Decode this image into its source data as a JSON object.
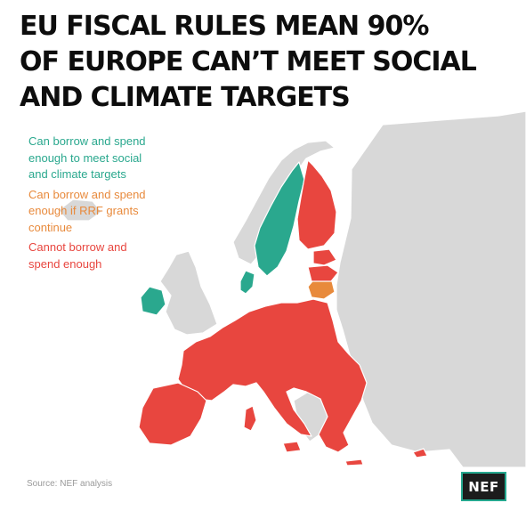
{
  "title_lines": [
    "EU FISCAL RULES MEAN 90%",
    "OF EUROPE CAN’T MEET SOCIAL",
    "AND CLIMATE TARGETS"
  ],
  "legend": [
    {
      "lines": [
        "Can borrow and spend",
        "enough to meet social",
        "and climate targets"
      ],
      "color": "#2aa88e"
    },
    {
      "lines": [
        "Can borrow and spend",
        "enough if RRF grants",
        "continue"
      ],
      "color": "#e88a3c"
    },
    {
      "lines": [
        "Cannot borrow and",
        "spend enough"
      ],
      "color": "#e8463f"
    }
  ],
  "map_colors": {
    "red": "#e8463f",
    "teal": "#2aa88e",
    "orange": "#e88a3c",
    "grey": "#d8d8d8",
    "border": "#ffffff",
    "sea": "#ffffff"
  },
  "source": "Source: NEF analysis",
  "logo": "NEF"
}
